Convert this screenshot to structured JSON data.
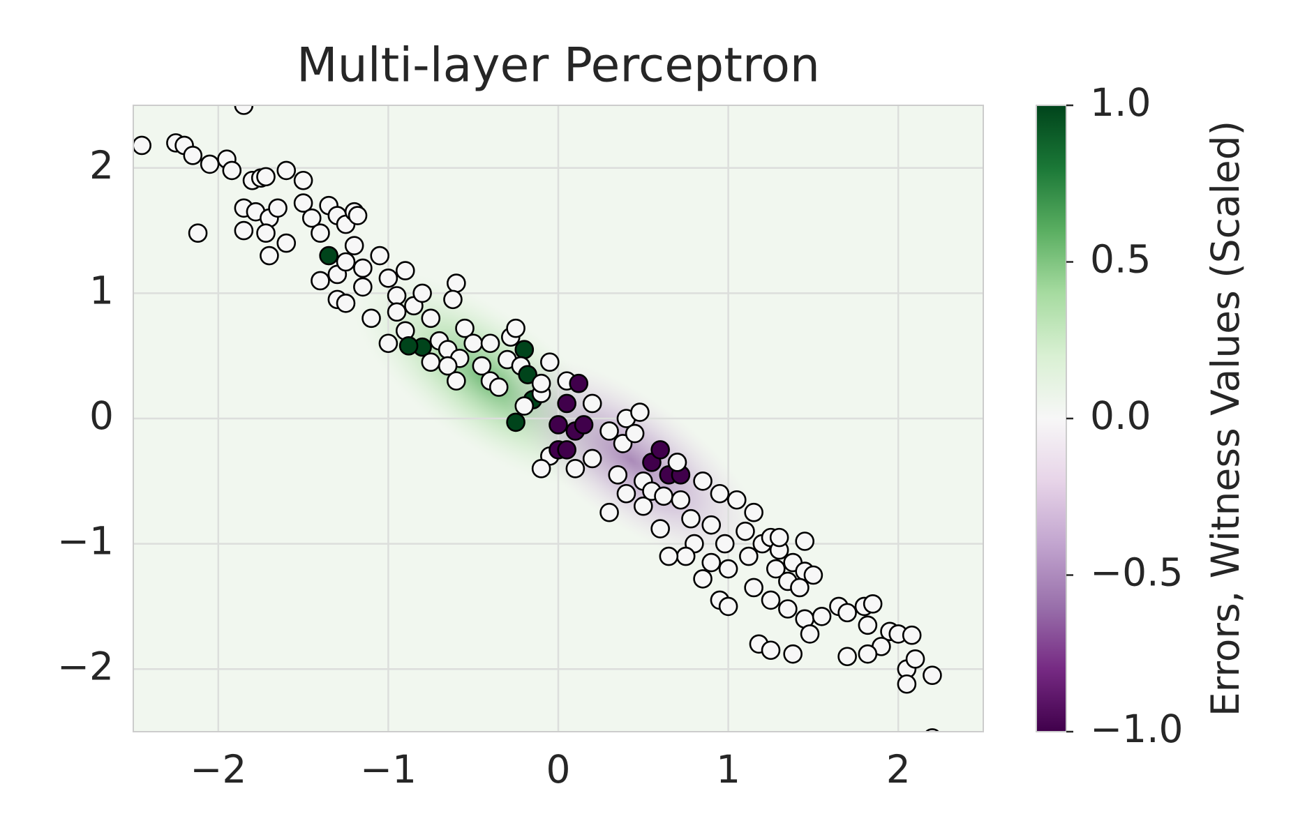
{
  "chart_data": {
    "type": "scatter",
    "title": "Multi-layer Perceptron",
    "colorbar_label": "Errors, Witness Values (Scaled)",
    "colormap": [
      "#40004b",
      "#762a83",
      "#9970ab",
      "#c2a5cf",
      "#e7d4e8",
      "#f7f7f7",
      "#d9f0d3",
      "#a6dba0",
      "#5aae61",
      "#1b7837",
      "#00441b"
    ],
    "clim": [
      -1,
      1
    ],
    "cticks": [
      {
        "value": -1,
        "label": "−1.0"
      },
      {
        "value": -0.5,
        "label": "−0.5"
      },
      {
        "value": 0,
        "label": "0.0"
      },
      0.5,
      {
        "value": 1,
        "label": "1.0"
      }
    ],
    "xlim": [
      -2.5,
      2.5
    ],
    "ylim": [
      -2.5,
      2.5
    ],
    "xticks": [
      {
        "value": -2,
        "label": "−2"
      },
      {
        "value": -1,
        "label": "−1"
      },
      0,
      1,
      2
    ],
    "yticks": [
      {
        "value": -2,
        "label": "−2"
      },
      {
        "value": -1,
        "label": "−1"
      },
      0,
      1,
      2
    ],
    "grid": true,
    "x": [
      -2.45,
      -2.25,
      -2.2,
      -2.15,
      -2.05,
      -1.95,
      -1.92,
      -2.12,
      -1.85,
      -1.8,
      -1.75,
      -1.72,
      -1.6,
      -1.5,
      -1.85,
      -1.78,
      -1.7,
      -1.65,
      -1.72,
      -1.85,
      -1.7,
      -1.6,
      -1.5,
      -1.45,
      -1.4,
      -1.35,
      -1.3,
      -1.25,
      -1.2,
      -1.18,
      -1.35,
      -1.3,
      -1.25,
      -1.2,
      -1.15,
      -1.4,
      -1.3,
      -1.25,
      -1.1,
      -1.15,
      -1.05,
      -1.0,
      -0.95,
      -0.9,
      -0.95,
      -1.0,
      -0.9,
      -0.85,
      -0.8,
      -0.75,
      -0.8,
      -0.88,
      -0.7,
      -0.65,
      -0.6,
      -0.62,
      -0.55,
      -0.58,
      -0.65,
      -0.75,
      -0.6,
      -0.5,
      -0.45,
      -0.4,
      -0.4,
      -0.35,
      -0.3,
      -0.28,
      -0.25,
      -0.2,
      -0.22,
      -0.18,
      -0.15,
      -0.25,
      -0.2,
      -0.1,
      -0.05,
      -0.1,
      0.05,
      0.12,
      0.05,
      0.0,
      -0.05,
      -0.1,
      0.0,
      0.05,
      0.1,
      0.15,
      0.2,
      0.2,
      0.1,
      0.3,
      0.38,
      0.4,
      0.45,
      0.48,
      0.35,
      0.4,
      0.3,
      0.5,
      0.55,
      0.6,
      0.65,
      0.72,
      0.5,
      0.55,
      0.62,
      0.7,
      0.72,
      0.78,
      0.85,
      0.8,
      0.75,
      0.65,
      0.9,
      0.95,
      0.98,
      1.0,
      0.9,
      0.85,
      1.05,
      1.1,
      1.15,
      1.2,
      1.12,
      1.25,
      1.28,
      1.3,
      1.38,
      1.45,
      1.35,
      1.42,
      1.3,
      1.45,
      1.5,
      1.15,
      1.25,
      1.35,
      1.45,
      1.48,
      1.55,
      1.65,
      1.7,
      1.8,
      1.85,
      1.82,
      1.95,
      1.9,
      1.82,
      1.7,
      2.0,
      2.08,
      2.05,
      2.1,
      2.2,
      2.05,
      2.2,
      1.18,
      1.25,
      1.38,
      0.95,
      1.0,
      0.6
    ],
    "y": [
      2.18,
      2.2,
      2.18,
      2.1,
      2.03,
      2.07,
      1.98,
      1.48,
      2.5,
      1.9,
      1.92,
      1.93,
      1.98,
      1.9,
      1.68,
      1.65,
      1.6,
      1.68,
      1.48,
      1.5,
      1.3,
      1.4,
      1.72,
      1.6,
      1.48,
      1.7,
      1.62,
      1.55,
      1.65,
      1.62,
      1.3,
      1.15,
      1.25,
      1.38,
      1.2,
      1.1,
      0.95,
      0.92,
      0.8,
      1.05,
      1.3,
      1.12,
      0.98,
      1.18,
      0.85,
      0.6,
      0.7,
      0.9,
      1.0,
      0.8,
      0.57,
      0.58,
      0.62,
      0.55,
      1.08,
      0.95,
      0.72,
      0.48,
      0.42,
      0.45,
      0.3,
      0.6,
      0.42,
      0.6,
      0.3,
      0.25,
      0.47,
      0.65,
      0.72,
      0.55,
      0.42,
      0.35,
      0.15,
      -0.03,
      0.1,
      0.2,
      0.45,
      0.28,
      0.3,
      0.28,
      0.12,
      -0.05,
      -0.3,
      -0.4,
      -0.25,
      -0.25,
      -0.1,
      -0.05,
      0.12,
      -0.32,
      -0.4,
      -0.1,
      -0.2,
      0.0,
      -0.12,
      0.05,
      -0.45,
      -0.6,
      -0.75,
      -0.5,
      -0.35,
      -0.25,
      -0.45,
      -0.45,
      -0.7,
      -0.58,
      -0.62,
      -0.35,
      -0.65,
      -0.8,
      -0.5,
      -1.0,
      -1.1,
      -1.1,
      -0.85,
      -0.6,
      -1.0,
      -1.2,
      -1.15,
      -1.28,
      -0.65,
      -0.9,
      -0.75,
      -1.0,
      -1.1,
      -0.95,
      -1.2,
      -1.05,
      -1.15,
      -1.22,
      -1.3,
      -1.35,
      -0.95,
      -0.98,
      -1.25,
      -1.35,
      -1.45,
      -1.52,
      -1.6,
      -1.72,
      -1.58,
      -1.5,
      -1.55,
      -1.5,
      -1.48,
      -1.65,
      -1.7,
      -1.82,
      -1.88,
      -1.9,
      -1.72,
      -1.73,
      -2.0,
      -1.92,
      -2.05,
      -2.12,
      -2.55,
      -1.8,
      -1.85,
      -1.88,
      -1.45,
      -1.5,
      -0.88
    ],
    "c": [
      0,
      0,
      0,
      0,
      0,
      0,
      0,
      0,
      0,
      0,
      0,
      0,
      0,
      0,
      0,
      0,
      0,
      0,
      0,
      0,
      0,
      0,
      0,
      0,
      0,
      0,
      0,
      0,
      0,
      0,
      1,
      0,
      0,
      0,
      0,
      0,
      0,
      0,
      0,
      0,
      0,
      0,
      0,
      0,
      0,
      0,
      0,
      0,
      0,
      0,
      1,
      1,
      0,
      0,
      0,
      0,
      0,
      0,
      0,
      0,
      0,
      0,
      0,
      0,
      0,
      0,
      0,
      0,
      0,
      1,
      0,
      1,
      1,
      1,
      0,
      0,
      0,
      0,
      0,
      -1,
      -1,
      -1,
      0,
      0,
      -1,
      -1,
      -1,
      -1,
      0,
      0,
      0,
      0,
      0,
      0,
      0,
      0,
      0,
      0,
      0,
      0,
      -1,
      -1,
      -1,
      -1,
      0,
      0,
      0,
      0,
      0,
      0,
      0,
      0,
      0,
      0,
      0,
      0,
      0,
      0,
      0,
      0,
      0,
      0,
      0,
      0,
      0,
      0,
      0,
      0,
      0,
      0,
      0,
      0,
      0,
      0,
      0,
      0,
      0,
      0,
      0,
      0,
      0,
      0,
      0,
      0,
      0,
      0,
      0,
      0,
      0,
      0,
      0,
      0,
      0,
      0,
      0,
      0,
      0,
      0,
      0,
      0,
      0,
      0,
      0
    ]
  }
}
